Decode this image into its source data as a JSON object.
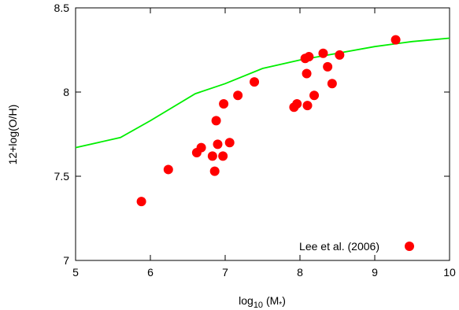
{
  "chart_data": {
    "type": "scatter",
    "title": "",
    "xlabel": "log",
    "xlabel_subscript": "10",
    "xlabel_suffix": " (M",
    "xlabel_star": "*",
    "xlabel_close": ")",
    "ylabel": "12+log(O/H)",
    "xlim": [
      5,
      10
    ],
    "ylim": [
      7,
      8.5
    ],
    "xticks": [
      5,
      6,
      7,
      8,
      9,
      10
    ],
    "yticks": [
      7,
      7.5,
      8,
      8.5
    ],
    "xtick_labels": [
      "5",
      "6",
      "7",
      "8",
      "9",
      "10"
    ],
    "ytick_labels": [
      "7",
      "7.5",
      "8",
      "8.5"
    ],
    "grid": false,
    "legend_position": "bottom-right",
    "series": [
      {
        "name": "Lee et al. (2006)",
        "kind": "scatter",
        "color": "#ff0000",
        "points": [
          [
            5.88,
            7.35
          ],
          [
            6.24,
            7.54
          ],
          [
            6.62,
            7.64
          ],
          [
            6.68,
            7.67
          ],
          [
            6.83,
            7.62
          ],
          [
            6.86,
            7.53
          ],
          [
            6.88,
            7.83
          ],
          [
            6.9,
            7.69
          ],
          [
            6.97,
            7.62
          ],
          [
            6.98,
            7.93
          ],
          [
            7.06,
            7.7
          ],
          [
            7.17,
            7.98
          ],
          [
            7.39,
            8.06
          ],
          [
            7.92,
            7.91
          ],
          [
            7.96,
            7.93
          ],
          [
            8.07,
            8.2
          ],
          [
            8.09,
            8.11
          ],
          [
            8.1,
            7.92
          ],
          [
            8.12,
            8.21
          ],
          [
            8.19,
            7.98
          ],
          [
            8.31,
            8.23
          ],
          [
            8.37,
            8.15
          ],
          [
            8.43,
            8.05
          ],
          [
            8.53,
            8.22
          ],
          [
            9.28,
            8.31
          ]
        ]
      },
      {
        "name": "",
        "kind": "line",
        "color": "#00ee00",
        "points": [
          [
            5.0,
            7.67
          ],
          [
            5.6,
            7.73
          ],
          [
            6.0,
            7.83
          ],
          [
            6.6,
            7.99
          ],
          [
            7.0,
            8.05
          ],
          [
            7.5,
            8.14
          ],
          [
            8.0,
            8.19
          ],
          [
            8.5,
            8.23
          ],
          [
            9.0,
            8.27
          ],
          [
            9.5,
            8.3
          ],
          [
            10.0,
            8.32
          ]
        ]
      }
    ]
  }
}
